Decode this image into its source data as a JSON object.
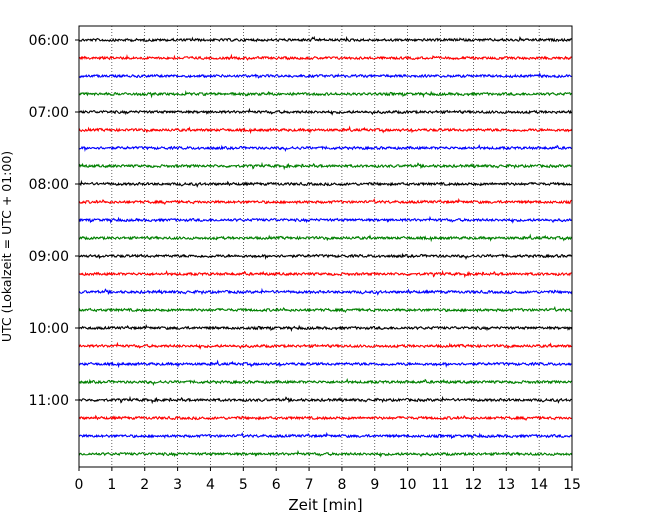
{
  "chart_data": {
    "type": "line",
    "title": "",
    "xlabel": "Zeit  [min]",
    "ylabel": "UTC (Lokalzeit = UTC + 01:00)",
    "xlim": [
      0,
      15
    ],
    "x_ticks": [
      "0",
      "1",
      "2",
      "3",
      "4",
      "5",
      "6",
      "7",
      "8",
      "9",
      "10",
      "11",
      "12",
      "13",
      "14",
      "15"
    ],
    "y_ticks": [
      "06:00",
      "07:00",
      "08:00",
      "09:00",
      "10:00",
      "11:00"
    ],
    "grid": "vertical dotted at each minute",
    "trace_interval_min": 15,
    "trace_start": "06:00",
    "trace_count": 24,
    "trace_colors": [
      "#000000",
      "#ff0000",
      "#0000ff",
      "#008000"
    ],
    "series": [
      {
        "start": "06:00",
        "color": "#000000"
      },
      {
        "start": "06:15",
        "color": "#ff0000"
      },
      {
        "start": "06:30",
        "color": "#0000ff"
      },
      {
        "start": "06:45",
        "color": "#008000"
      },
      {
        "start": "07:00",
        "color": "#000000"
      },
      {
        "start": "07:15",
        "color": "#ff0000"
      },
      {
        "start": "07:30",
        "color": "#0000ff"
      },
      {
        "start": "07:45",
        "color": "#008000"
      },
      {
        "start": "08:00",
        "color": "#000000"
      },
      {
        "start": "08:15",
        "color": "#ff0000"
      },
      {
        "start": "08:30",
        "color": "#0000ff"
      },
      {
        "start": "08:45",
        "color": "#008000"
      },
      {
        "start": "09:00",
        "color": "#000000"
      },
      {
        "start": "09:15",
        "color": "#ff0000"
      },
      {
        "start": "09:30",
        "color": "#0000ff"
      },
      {
        "start": "09:45",
        "color": "#008000"
      },
      {
        "start": "10:00",
        "color": "#000000"
      },
      {
        "start": "10:15",
        "color": "#ff0000"
      },
      {
        "start": "10:30",
        "color": "#0000ff"
      },
      {
        "start": "10:45",
        "color": "#008000"
      },
      {
        "start": "11:00",
        "color": "#000000"
      },
      {
        "start": "11:15",
        "color": "#ff0000"
      },
      {
        "start": "11:30",
        "color": "#0000ff"
      },
      {
        "start": "11:45",
        "color": "#008000"
      }
    ]
  }
}
